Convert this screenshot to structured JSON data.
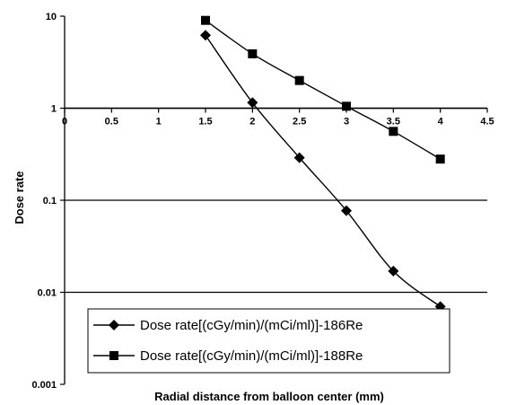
{
  "chart_data": {
    "type": "line",
    "xlabel": "Radial distance from balloon center (mm)",
    "ylabel": "Dose rate",
    "xlim": [
      0,
      4.5
    ],
    "ylim": [
      0.001,
      10
    ],
    "yscale": "log",
    "x_ticks": [
      "0",
      "0.5",
      "1",
      "1.5",
      "2",
      "2.5",
      "3",
      "3.5",
      "4",
      "4.5"
    ],
    "y_ticks": [
      "10",
      "1",
      "0.1",
      "0.01",
      "0.001"
    ],
    "grid": "horizontal major lines",
    "legend_position": "bottom-left inside plot",
    "series": [
      {
        "name": "Dose rate[(cGy/min)/(mCi/ml)]-186Re",
        "marker": "diamond",
        "color": "#000000",
        "x": [
          1.5,
          2,
          2.5,
          3,
          3.5,
          4
        ],
        "y": [
          6.2,
          1.15,
          0.29,
          0.077,
          0.017,
          0.007
        ]
      },
      {
        "name": "Dose rate[(cGy/min)/(mCi/ml)]-188Re",
        "marker": "square",
        "color": "#000000",
        "x": [
          1.5,
          2,
          2.5,
          3,
          3.5,
          4
        ],
        "y": [
          9.0,
          3.9,
          2.0,
          1.05,
          0.56,
          0.28
        ]
      }
    ]
  }
}
